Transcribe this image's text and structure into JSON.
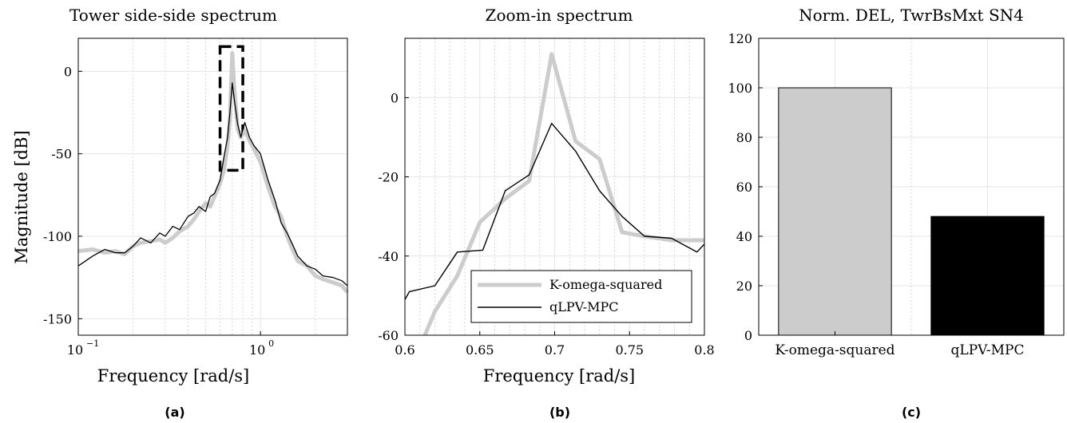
{
  "panel_labels": [
    "(a)",
    "(b)",
    "(c)"
  ],
  "colors": {
    "k_omega": "#cccccc",
    "qlpv": "#000000",
    "grid": "#e6e6e6",
    "box": "#000000"
  },
  "chart_data": [
    {
      "type": "line",
      "title": "Tower side-side spectrum",
      "xlabel": "Frequency [rad/s]",
      "ylabel": "Magnitude [dB]",
      "xscale": "log",
      "xlim": [
        0.1,
        3.0
      ],
      "ylim": [
        -160,
        20
      ],
      "xticks": [
        0.1,
        1.0
      ],
      "xtick_labels": [
        "10",
        "10"
      ],
      "xtick_exponents": [
        "−1",
        "0"
      ],
      "yticks": [
        -150,
        -100,
        -50,
        0
      ],
      "ytick_labels": [
        "-150",
        "-100",
        "-50",
        "0"
      ],
      "grid": true,
      "annotation": {
        "type": "dashed-box",
        "x": [
          0.6,
          0.8
        ],
        "y": [
          -60,
          15
        ]
      },
      "series": [
        {
          "name": "K-omega-squared",
          "x": [
            0.1,
            0.12,
            0.14,
            0.16,
            0.18,
            0.2,
            0.22,
            0.25,
            0.28,
            0.3,
            0.33,
            0.36,
            0.4,
            0.43,
            0.46,
            0.5,
            0.53,
            0.56,
            0.6,
            0.63,
            0.66,
            0.68,
            0.7,
            0.72,
            0.75,
            0.78,
            0.82,
            0.87,
            0.92,
            1.0,
            1.1,
            1.2,
            1.3,
            1.4,
            1.5,
            1.6,
            1.8,
            2.0,
            2.2,
            2.5,
            2.8,
            3.0
          ],
          "y": [
            -109,
            -108,
            -110,
            -109,
            -111,
            -106,
            -104,
            -103,
            -102,
            -104,
            -101,
            -97,
            -94,
            -90,
            -85,
            -80,
            -82,
            -76,
            -68,
            -60,
            -45,
            -28,
            11,
            -12,
            -35,
            -40,
            -36,
            -42,
            -47,
            -55,
            -70,
            -82,
            -88,
            -100,
            -108,
            -115,
            -118,
            -124,
            -126,
            -128,
            -130,
            -134
          ]
        },
        {
          "name": "qLPV-MPC",
          "x": [
            0.1,
            0.12,
            0.14,
            0.16,
            0.18,
            0.2,
            0.22,
            0.25,
            0.28,
            0.3,
            0.33,
            0.36,
            0.4,
            0.43,
            0.46,
            0.5,
            0.53,
            0.56,
            0.6,
            0.63,
            0.66,
            0.68,
            0.7,
            0.72,
            0.75,
            0.78,
            0.82,
            0.87,
            0.92,
            1.0,
            1.1,
            1.2,
            1.3,
            1.4,
            1.5,
            1.6,
            1.8,
            2.0,
            2.2,
            2.5,
            2.8,
            3.0
          ],
          "y": [
            -118,
            -112,
            -108,
            -110,
            -110,
            -106,
            -101,
            -104,
            -98,
            -100,
            -94,
            -96,
            -88,
            -86,
            -82,
            -85,
            -76,
            -74,
            -66,
            -52,
            -40,
            -25,
            -7,
            -18,
            -32,
            -40,
            -31,
            -40,
            -45,
            -50,
            -66,
            -78,
            -92,
            -98,
            -105,
            -112,
            -118,
            -120,
            -124,
            -125,
            -127,
            -130
          ]
        }
      ]
    },
    {
      "type": "line",
      "title": "Zoom-in spectrum",
      "xlabel": "Frequency [rad/s]",
      "ylabel": "",
      "xlim": [
        0.6,
        0.8
      ],
      "ylim": [
        -60,
        15
      ],
      "xticks": [
        0.6,
        0.65,
        0.7,
        0.75,
        0.8
      ],
      "xtick_labels": [
        "0.6",
        "0.65",
        "0.7",
        "0.75",
        "0.8"
      ],
      "yticks": [
        -60,
        -40,
        -20,
        0
      ],
      "ytick_labels": [
        "-60",
        "-40",
        "-20",
        "0"
      ],
      "grid": true,
      "legend": {
        "position": "bottom-right",
        "entries": [
          "K-omega-squared",
          "qLPV-MPC"
        ]
      },
      "series": [
        {
          "name": "K-omega-squared",
          "x": [
            0.6,
            0.62,
            0.635,
            0.65,
            0.667,
            0.683,
            0.698,
            0.714,
            0.73,
            0.745,
            0.76,
            0.778,
            0.8
          ],
          "y": [
            -72,
            -54,
            -45,
            -31.5,
            -25.5,
            -21,
            11,
            -11,
            -15.5,
            -34,
            -35,
            -36,
            -36
          ]
        },
        {
          "name": "qLPV-MPC",
          "x": [
            0.6,
            0.603,
            0.62,
            0.635,
            0.652,
            0.667,
            0.683,
            0.698,
            0.714,
            0.73,
            0.745,
            0.76,
            0.778,
            0.795,
            0.8
          ],
          "y": [
            -51,
            -49,
            -47.5,
            -39,
            -38.5,
            -23.5,
            -19.5,
            -6.5,
            -13.5,
            -23.5,
            -30,
            -35,
            -35.5,
            -39,
            -37
          ]
        }
      ]
    },
    {
      "type": "bar",
      "title": "Norm. DEL, TwrBsMxt SN4",
      "xlabel": "",
      "ylabel": "",
      "categories": [
        "K-omega-squared",
        "qLPV-MPC"
      ],
      "values": [
        100,
        48
      ],
      "ylim": [
        0,
        120
      ],
      "yticks": [
        0,
        20,
        40,
        60,
        80,
        100,
        120
      ],
      "ytick_labels": [
        "0",
        "20",
        "40",
        "60",
        "80",
        "100",
        "120"
      ],
      "grid": true,
      "bar_colors": [
        "#cccccc",
        "#000000"
      ]
    }
  ]
}
